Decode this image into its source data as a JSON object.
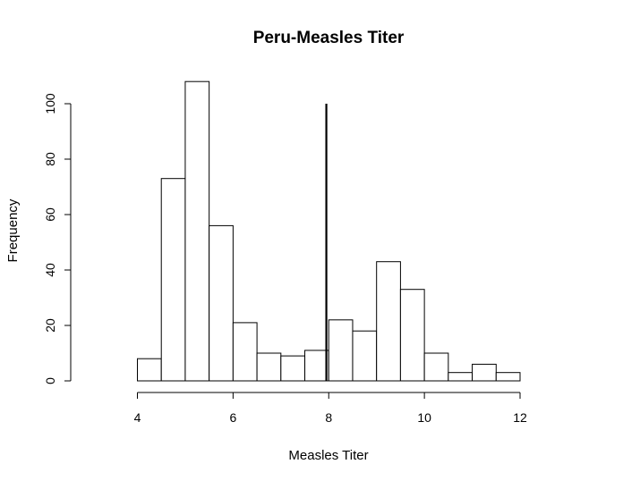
{
  "chart_data": {
    "type": "bar",
    "title": "Peru-Measles Titer",
    "xlabel": "Measles Titer",
    "ylabel": "Frequency",
    "xlim": [
      4,
      12
    ],
    "ylim": [
      0,
      100
    ],
    "x_ticks": [
      4,
      6,
      8,
      10,
      12
    ],
    "y_ticks": [
      0,
      20,
      40,
      60,
      80,
      100
    ],
    "bin_edges": [
      4,
      4.5,
      5,
      5.5,
      6,
      6.5,
      7,
      7.5,
      8,
      8.5,
      9,
      9.5,
      10,
      10.5,
      11,
      11.5,
      12
    ],
    "values": [
      8,
      73,
      108,
      56,
      21,
      10,
      9,
      11,
      22,
      18,
      43,
      33,
      10,
      3,
      6,
      3
    ],
    "reference_line": {
      "x": 7.95,
      "y_from": 0,
      "y_to": 100
    },
    "grid": false
  }
}
